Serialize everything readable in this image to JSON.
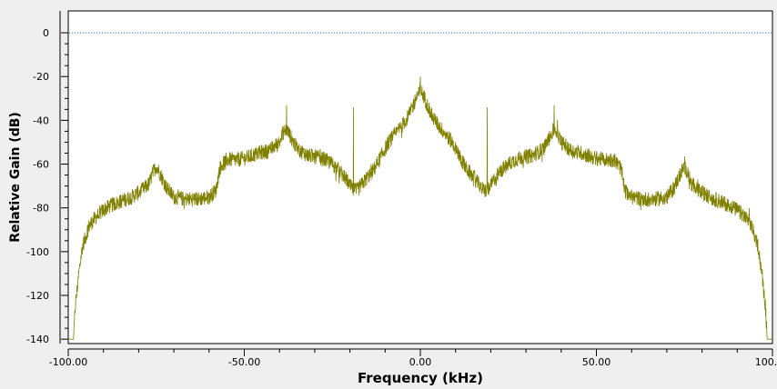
{
  "chart_data": {
    "type": "line",
    "xlabel": "Frequency (kHz)",
    "ylabel": "Relative Gain (dB)",
    "xlim": [
      -100,
      100
    ],
    "ylim": [
      -142,
      10
    ],
    "x_ticks": [
      -100,
      -50,
      0,
      50,
      100
    ],
    "x_tick_labels": [
      "-100.00",
      "-50.00",
      "0.00",
      "50.00",
      "100.00"
    ],
    "y_ticks": [
      0,
      -20,
      -40,
      -60,
      -80,
      -100,
      -120,
      -140
    ],
    "y_tick_labels": [
      "0",
      "-20",
      "-40",
      "-60",
      "-80",
      "-100",
      "-120",
      "-140"
    ],
    "grid": false,
    "reference_line": {
      "y": 0,
      "color": "#1f77b4",
      "style": "dotted"
    },
    "series": [
      {
        "color": "#808000",
        "envelope": [
          [
            -100,
            -140
          ],
          [
            -98.5,
            -140
          ],
          [
            -98,
            -125
          ],
          [
            -97,
            -110
          ],
          [
            -96,
            -98
          ],
          [
            -94,
            -88
          ],
          [
            -92,
            -84
          ],
          [
            -90,
            -81
          ],
          [
            -88,
            -79
          ],
          [
            -85,
            -77
          ],
          [
            -82,
            -75
          ],
          [
            -79,
            -72
          ],
          [
            -77,
            -69
          ],
          [
            -76,
            -64
          ],
          [
            -75,
            -61
          ],
          [
            -74,
            -64
          ],
          [
            -72,
            -71
          ],
          [
            -70,
            -75
          ],
          [
            -67,
            -76
          ],
          [
            -63,
            -76
          ],
          [
            -60,
            -75
          ],
          [
            -58,
            -72
          ],
          [
            -57,
            -62
          ],
          [
            -55,
            -58
          ],
          [
            -52,
            -58
          ],
          [
            -49,
            -57
          ],
          [
            -46,
            -55
          ],
          [
            -43,
            -54
          ],
          [
            -40,
            -50
          ],
          [
            -39,
            -46
          ],
          [
            -38,
            -44
          ],
          [
            -37,
            -47
          ],
          [
            -35,
            -53
          ],
          [
            -32,
            -56
          ],
          [
            -29,
            -57
          ],
          [
            -27,
            -58
          ],
          [
            -25,
            -60
          ],
          [
            -23,
            -63
          ],
          [
            -21,
            -67
          ],
          [
            -20,
            -70
          ],
          [
            -19,
            -72
          ],
          [
            -18,
            -72
          ],
          [
            -17,
            -70
          ],
          [
            -15,
            -66
          ],
          [
            -13,
            -62
          ],
          [
            -11,
            -56
          ],
          [
            -9,
            -50
          ],
          [
            -7,
            -46
          ],
          [
            -5,
            -42
          ],
          [
            -3,
            -37
          ],
          [
            -2,
            -33
          ],
          [
            -1,
            -29
          ],
          [
            0,
            -26
          ],
          [
            1,
            -29
          ],
          [
            2,
            -33
          ],
          [
            3,
            -37
          ],
          [
            5,
            -42
          ],
          [
            7,
            -46
          ],
          [
            9,
            -50
          ],
          [
            11,
            -56
          ],
          [
            13,
            -62
          ],
          [
            15,
            -66
          ],
          [
            17,
            -70
          ],
          [
            18,
            -72
          ],
          [
            19,
            -72
          ],
          [
            20,
            -70
          ],
          [
            21,
            -67
          ],
          [
            23,
            -63
          ],
          [
            25,
            -60
          ],
          [
            27,
            -58
          ],
          [
            29,
            -57
          ],
          [
            32,
            -56
          ],
          [
            35,
            -53
          ],
          [
            37,
            -47
          ],
          [
            38,
            -44
          ],
          [
            39,
            -46
          ],
          [
            40,
            -50
          ],
          [
            43,
            -54
          ],
          [
            46,
            -55
          ],
          [
            49,
            -57
          ],
          [
            52,
            -58
          ],
          [
            55,
            -58
          ],
          [
            57,
            -62
          ],
          [
            58,
            -72
          ],
          [
            60,
            -75
          ],
          [
            63,
            -76
          ],
          [
            67,
            -76
          ],
          [
            70,
            -75
          ],
          [
            72,
            -71
          ],
          [
            74,
            -64
          ],
          [
            75,
            -61
          ],
          [
            76,
            -64
          ],
          [
            77,
            -69
          ],
          [
            79,
            -72
          ],
          [
            82,
            -75
          ],
          [
            85,
            -77
          ],
          [
            88,
            -79
          ],
          [
            90,
            -81
          ],
          [
            92,
            -84
          ],
          [
            94,
            -88
          ],
          [
            96,
            -98
          ],
          [
            97,
            -110
          ],
          [
            98,
            -125
          ],
          [
            98.5,
            -140
          ],
          [
            100,
            -140
          ]
        ],
        "spurs": [
          {
            "x": -19,
            "y": -34
          },
          {
            "x": 19,
            "y": -34
          },
          {
            "x": 0,
            "y": -20
          },
          {
            "x": -38,
            "y": -33
          },
          {
            "x": 38,
            "y": -33
          }
        ]
      }
    ]
  }
}
